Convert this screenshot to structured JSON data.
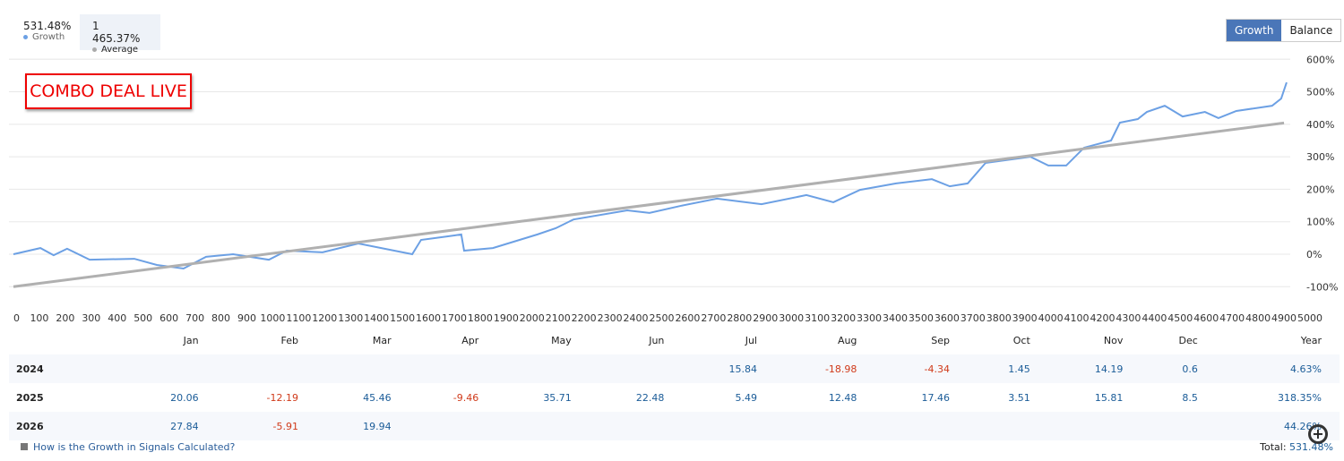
{
  "stats": {
    "growth_value": "531.48%",
    "growth_label": "Growth",
    "average_value": "1 465.37%",
    "average_label": "Average"
  },
  "buttons": {
    "growth": "Growth",
    "balance": "Balance"
  },
  "banner": "COMBO DEAL LIVE",
  "colors": {
    "growth": "#6ca0e4",
    "average": "#b0b0b0",
    "accent": "#4a76b8"
  },
  "chart_data": {
    "type": "line",
    "xlim": [
      0,
      5000
    ],
    "ylim": [
      -100,
      600
    ],
    "x_ticks": [
      0,
      100,
      200,
      300,
      400,
      500,
      600,
      700,
      800,
      900,
      1000,
      1100,
      1200,
      1300,
      1400,
      1500,
      1600,
      1700,
      1800,
      1900,
      2000,
      2100,
      2200,
      2300,
      2400,
      2500,
      2600,
      2700,
      2800,
      2900,
      3000,
      3100,
      3200,
      3300,
      3400,
      3500,
      3600,
      3700,
      3800,
      3900,
      4000,
      4100,
      4200,
      4300,
      4400,
      4500,
      4600,
      4700,
      4800,
      4900,
      5000
    ],
    "y_ticks": [
      "600%",
      "500%",
      "400%",
      "300%",
      "200%",
      "100%",
      "0%",
      "-100%"
    ],
    "y_tick_values": [
      600,
      500,
      400,
      300,
      200,
      100,
      0,
      -100
    ],
    "series": [
      {
        "name": "Growth",
        "x": [
          0,
          104,
          155,
          207,
          294,
          466,
          553,
          656,
          743,
          847,
          985,
          1054,
          1192,
          1330,
          1538,
          1572,
          1676,
          1727,
          1738,
          1849,
          2021,
          2091,
          2160,
          2367,
          2453,
          2574,
          2713,
          2885,
          3058,
          3162,
          3265,
          3404,
          3542,
          3611,
          3680,
          3749,
          3922,
          3991,
          4060,
          4129,
          4233,
          4267,
          4336,
          4371,
          4440,
          4509,
          4595,
          4647,
          4716,
          4854,
          4889,
          4910
        ],
        "y": [
          0,
          19,
          -3,
          17,
          -17,
          -14,
          -33,
          -44,
          -8,
          0,
          -17,
          11,
          6,
          33,
          0,
          44,
          55,
          61,
          11,
          19,
          61,
          80,
          107,
          135,
          127,
          149,
          171,
          154,
          182,
          160,
          198,
          218,
          231,
          209,
          218,
          281,
          300,
          273,
          273,
          328,
          350,
          405,
          416,
          438,
          457,
          424,
          438,
          419,
          441,
          457,
          479,
          529
        ]
      },
      {
        "name": "Average",
        "x": [
          0,
          4900
        ],
        "y": [
          -100,
          404
        ]
      }
    ]
  },
  "table": {
    "headers": [
      "",
      "Jan",
      "Feb",
      "Mar",
      "Apr",
      "May",
      "Jun",
      "Jul",
      "Aug",
      "Sep",
      "Oct",
      "Nov",
      "Dec",
      "Year"
    ],
    "rows": [
      [
        "2024",
        "",
        "",
        "",
        "",
        "",
        "",
        "15.84",
        "-18.98",
        "-4.34",
        "1.45",
        "14.19",
        "0.6",
        "4.63%"
      ],
      [
        "2025",
        "20.06",
        "-12.19",
        "45.46",
        "-9.46",
        "35.71",
        "22.48",
        "5.49",
        "12.48",
        "17.46",
        "3.51",
        "15.81",
        "8.5",
        "318.35%"
      ],
      [
        "2026",
        "27.84",
        "-5.91",
        "19.94",
        "",
        "",
        "",
        "",
        "",
        "",
        "",
        "",
        "",
        "44.26%"
      ]
    ]
  },
  "footer": {
    "link": "How is the Growth in Signals Calculated?",
    "total_label": "Total:",
    "total_value": "531.48%"
  }
}
